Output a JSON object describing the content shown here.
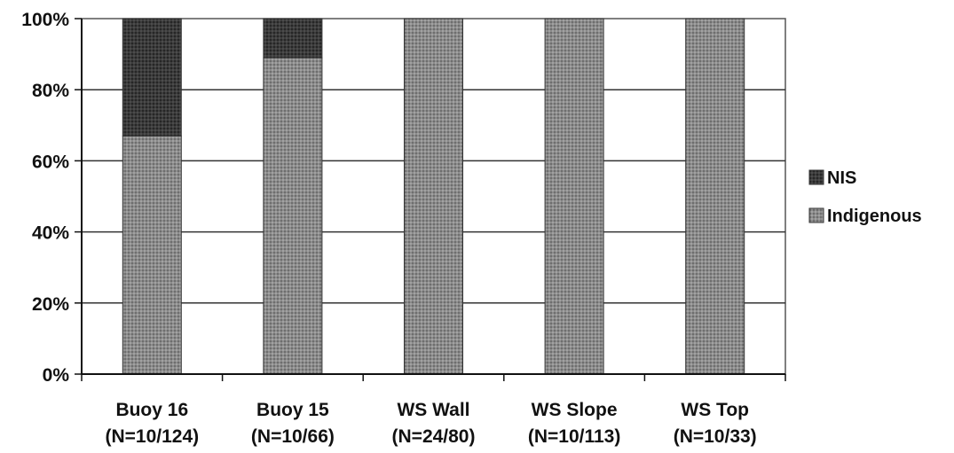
{
  "chart_data": {
    "type": "bar",
    "stacked": true,
    "percent": true,
    "categories": [
      [
        "Buoy 16",
        "(N=10/124)"
      ],
      [
        "Buoy 15",
        "(N=10/66)"
      ],
      [
        "WS Wall",
        "(N=24/80)"
      ],
      [
        "WS Slope",
        "(N=10/113)"
      ],
      [
        "WS Top",
        "(N=10/33)"
      ]
    ],
    "series": [
      {
        "name": "Indigenous",
        "values": [
          67,
          89,
          100,
          100,
          100
        ],
        "color": "#8a8a8a"
      },
      {
        "name": "NIS",
        "values": [
          33,
          11,
          0,
          0,
          0
        ],
        "color": "#3a3a3a"
      }
    ],
    "ylim": [
      0,
      100
    ],
    "yticks": [
      "0%",
      "20%",
      "40%",
      "60%",
      "80%",
      "100%"
    ],
    "grid": true,
    "legend_position": "right",
    "legend_order": [
      "NIS",
      "Indigenous"
    ]
  }
}
